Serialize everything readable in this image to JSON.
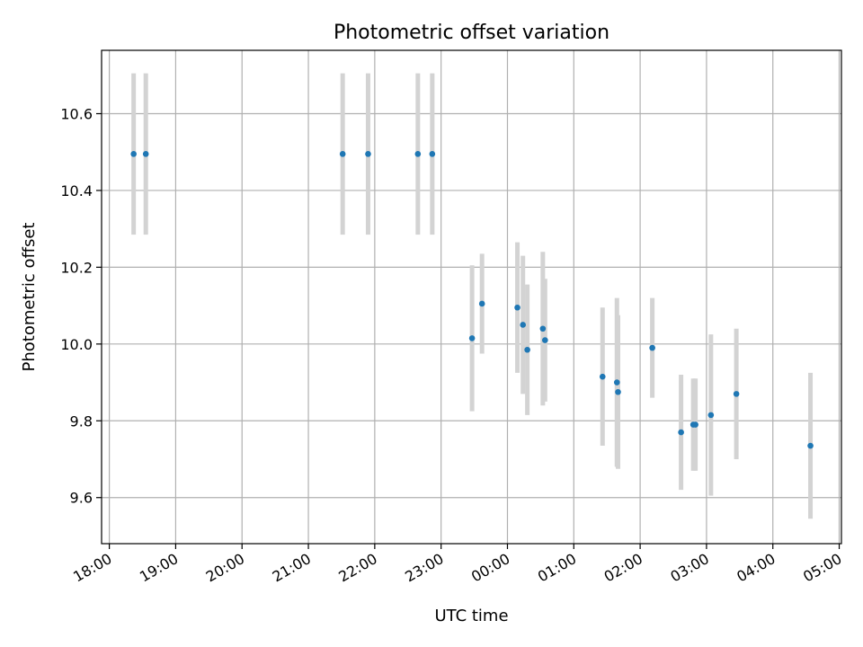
{
  "chart_data": {
    "type": "scatter",
    "title": "Photometric offset variation",
    "xlabel": "UTC time",
    "ylabel": "Photometric offset",
    "xlim": [
      "17:53",
      "05:02"
    ],
    "ylim": [
      9.48,
      10.765
    ],
    "x_ticks": [
      "18:00",
      "19:00",
      "20:00",
      "21:00",
      "22:00",
      "23:00",
      "00:00",
      "01:00",
      "02:00",
      "03:00",
      "04:00",
      "05:00"
    ],
    "y_ticks": [
      9.6,
      9.8,
      10.0,
      10.2,
      10.4,
      10.6
    ],
    "grid": true,
    "points": [
      {
        "t": "18:22",
        "y": 10.495,
        "err": 0.21
      },
      {
        "t": "18:33",
        "y": 10.495,
        "err": 0.21
      },
      {
        "t": "21:31",
        "y": 10.495,
        "err": 0.21
      },
      {
        "t": "21:54",
        "y": 10.495,
        "err": 0.21
      },
      {
        "t": "22:39",
        "y": 10.495,
        "err": 0.21
      },
      {
        "t": "22:52",
        "y": 10.495,
        "err": 0.21
      },
      {
        "t": "23:28",
        "y": 10.015,
        "err": 0.19
      },
      {
        "t": "23:37",
        "y": 10.105,
        "err": 0.13
      },
      {
        "t": "00:09",
        "y": 10.095,
        "err": 0.17
      },
      {
        "t": "00:14",
        "y": 10.05,
        "err": 0.18
      },
      {
        "t": "00:18",
        "y": 9.985,
        "err": 0.17
      },
      {
        "t": "00:32",
        "y": 10.04,
        "err": 0.2
      },
      {
        "t": "00:34",
        "y": 10.01,
        "err": 0.16
      },
      {
        "t": "01:26",
        "y": 9.915,
        "err": 0.18
      },
      {
        "t": "01:39",
        "y": 9.9,
        "err": 0.22
      },
      {
        "t": "01:40",
        "y": 9.875,
        "err": 0.2
      },
      {
        "t": "02:11",
        "y": 9.99,
        "err": 0.13
      },
      {
        "t": "02:37",
        "y": 9.77,
        "err": 0.15
      },
      {
        "t": "02:48",
        "y": 9.79,
        "err": 0.12
      },
      {
        "t": "02:50",
        "y": 9.79,
        "err": 0.12
      },
      {
        "t": "03:04",
        "y": 9.815,
        "err": 0.21
      },
      {
        "t": "03:27",
        "y": 9.87,
        "err": 0.17
      },
      {
        "t": "04:34",
        "y": 9.735,
        "err": 0.19
      }
    ],
    "colors": {
      "point": "#1f77b4",
      "errbar": "#d3d3d3"
    }
  }
}
